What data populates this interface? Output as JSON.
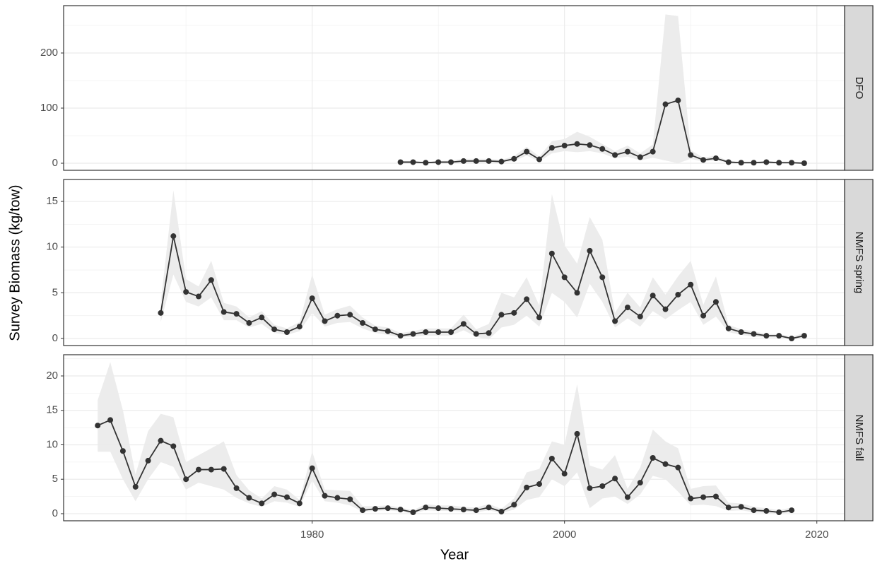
{
  "x_label": "Year",
  "y_label": "Survey Biomass (kg/tow)",
  "chart_data": [
    {
      "type": "line",
      "panel_label": "DFO",
      "x": [
        1987,
        1988,
        1989,
        1990,
        1991,
        1992,
        1993,
        1994,
        1995,
        1996,
        1997,
        1998,
        1999,
        2000,
        2001,
        2002,
        2003,
        2004,
        2005,
        2006,
        2007,
        2008,
        2009,
        2010,
        2011,
        2012,
        2013,
        2014,
        2015,
        2016,
        2017,
        2018,
        2019
      ],
      "values": [
        2,
        2,
        1,
        2,
        2,
        4,
        4,
        4,
        3,
        8,
        21,
        7,
        28,
        32,
        35,
        33,
        26,
        15,
        21,
        11,
        21,
        107,
        114,
        15,
        6,
        9,
        2,
        1,
        1,
        2,
        1,
        1,
        0
      ],
      "lower": [
        0,
        0,
        0,
        0,
        0,
        1,
        1,
        1,
        1,
        4,
        14,
        3,
        18,
        22,
        20,
        22,
        18,
        9,
        12,
        5,
        10,
        5,
        0,
        8,
        3,
        5,
        1,
        0,
        0,
        1,
        0,
        0,
        0
      ],
      "upper": [
        4,
        4,
        3,
        4,
        5,
        8,
        8,
        8,
        6,
        13,
        30,
        12,
        40,
        44,
        57,
        48,
        35,
        22,
        32,
        18,
        34,
        270,
        267,
        24,
        10,
        14,
        4,
        3,
        3,
        4,
        3,
        3,
        2
      ],
      "xlim": [
        1960.3,
        2022.2
      ],
      "xticks": [
        1980,
        2000,
        2020
      ],
      "ylim": [
        -12.8,
        285.9
      ],
      "yticks": [
        0,
        100,
        200
      ],
      "line_color": "#333333",
      "ribbon_color": "#ebebeb",
      "grid": true
    },
    {
      "type": "line",
      "panel_label": "NMFS spring",
      "x": [
        1968,
        1969,
        1970,
        1971,
        1972,
        1973,
        1974,
        1975,
        1976,
        1977,
        1978,
        1979,
        1980,
        1981,
        1982,
        1983,
        1984,
        1985,
        1986,
        1987,
        1988,
        1989,
        1990,
        1991,
        1992,
        1993,
        1994,
        1995,
        1996,
        1997,
        1998,
        1999,
        2000,
        2001,
        2002,
        2003,
        2004,
        2005,
        2006,
        2007,
        2008,
        2009,
        2010,
        2011,
        2012,
        2013,
        2014,
        2015,
        2016,
        2017,
        2018,
        2019
      ],
      "values": [
        2.8,
        11.2,
        5.1,
        4.6,
        6.4,
        2.9,
        2.7,
        1.7,
        2.3,
        1.0,
        0.7,
        1.3,
        4.4,
        1.9,
        2.5,
        2.6,
        1.7,
        1.0,
        0.8,
        0.3,
        0.5,
        0.7,
        0.7,
        0.7,
        1.6,
        0.5,
        0.6,
        2.6,
        2.8,
        4.3,
        2.3,
        9.3,
        6.7,
        5.0,
        9.6,
        6.7,
        1.9,
        3.4,
        2.4,
        4.7,
        3.2,
        4.8,
        5.9,
        2.5,
        4.0,
        1.1,
        0.7,
        0.5,
        0.3,
        0.3,
        0.0,
        0.3
      ],
      "lower": [
        1.8,
        7,
        4,
        3.5,
        4.5,
        2,
        2,
        1.2,
        1.6,
        0.6,
        0.4,
        0.8,
        2.8,
        1.3,
        1.7,
        1.8,
        1.1,
        0.6,
        0.4,
        0.1,
        0.2,
        0.3,
        0.3,
        0.3,
        0.9,
        0.2,
        -0.1,
        1.2,
        1.5,
        2.5,
        1.3,
        5,
        4,
        2.3,
        6,
        4,
        1.2,
        2.2,
        1.3,
        3,
        2.1,
        3.1,
        4,
        1.5,
        2.4,
        0.7,
        0.4,
        0.2,
        0.1,
        0.1,
        -0.1,
        0.1
      ],
      "upper": [
        4,
        16.2,
        6.5,
        5.7,
        8.5,
        3.9,
        3.5,
        2.3,
        3,
        1.5,
        1.1,
        1.8,
        7,
        2.6,
        3.2,
        3.6,
        2.3,
        1.4,
        1.2,
        0.6,
        0.8,
        1.1,
        1.1,
        1.1,
        2.6,
        1,
        1.6,
        5,
        4.5,
        6.7,
        3.6,
        15.8,
        10.2,
        8.2,
        13.3,
        10.8,
        2.8,
        5,
        3.4,
        6.7,
        4.8,
        6.8,
        8.5,
        3.7,
        6.8,
        1.5,
        1,
        0.8,
        0.5,
        0.5,
        0.2,
        0.6
      ],
      "xlim": [
        1960.3,
        2022.2
      ],
      "xticks": [
        1980,
        2000,
        2020
      ],
      "ylim": [
        -0.77,
        17.4
      ],
      "yticks": [
        0,
        5,
        10,
        15
      ],
      "line_color": "#333333",
      "ribbon_color": "#ebebeb",
      "grid": true
    },
    {
      "type": "line",
      "panel_label": "NMFS fall",
      "x": [
        1963,
        1964,
        1965,
        1966,
        1967,
        1968,
        1969,
        1970,
        1971,
        1972,
        1973,
        1974,
        1975,
        1976,
        1977,
        1978,
        1979,
        1980,
        1981,
        1982,
        1983,
        1984,
        1985,
        1986,
        1987,
        1988,
        1989,
        1990,
        1991,
        1992,
        1993,
        1994,
        1995,
        1996,
        1997,
        1998,
        1999,
        2000,
        2001,
        2002,
        2003,
        2004,
        2005,
        2006,
        2007,
        2008,
        2009,
        2010,
        2011,
        2012,
        2013,
        2014,
        2015,
        2016,
        2017,
        2018
      ],
      "values": [
        12.8,
        13.6,
        9.1,
        3.9,
        7.7,
        10.6,
        9.8,
        5.0,
        6.4,
        6.4,
        6.5,
        3.7,
        2.3,
        1.5,
        2.8,
        2.4,
        1.5,
        6.6,
        2.6,
        2.3,
        2.1,
        0.5,
        0.7,
        0.8,
        0.6,
        0.2,
        0.9,
        0.8,
        0.7,
        0.6,
        0.5,
        0.9,
        0.3,
        1.3,
        3.8,
        4.3,
        8.0,
        5.8,
        11.6,
        3.7,
        4.0,
        5.1,
        2.4,
        4.5,
        8.1,
        7.2,
        6.7,
        2.2,
        2.4,
        2.5,
        0.9,
        1.0,
        0.5,
        0.4,
        0.2,
        0.5
      ],
      "lower": [
        9,
        9,
        5,
        1.8,
        5,
        7.5,
        6.8,
        3.5,
        4.5,
        4,
        3.5,
        2.3,
        1.5,
        1,
        1.8,
        1.6,
        1,
        4.8,
        1.8,
        1.6,
        1.2,
        0.3,
        0.4,
        0.5,
        0.3,
        0,
        0.5,
        0.4,
        0.4,
        0.3,
        0.2,
        0.5,
        0.1,
        0.6,
        2,
        2.4,
        5,
        4,
        6,
        0.8,
        2.2,
        2.5,
        1.4,
        2.8,
        5.5,
        5,
        3.2,
        1.2,
        1.3,
        1.1,
        0.4,
        0.5,
        0.2,
        0.1,
        0,
        0.2
      ],
      "upper": [
        16.5,
        22,
        15,
        5.7,
        12,
        14.5,
        14,
        7.5,
        8.5,
        9.5,
        10.5,
        5.6,
        3.4,
        2.2,
        4,
        3.5,
        2,
        9,
        3.5,
        3.4,
        3.3,
        1.1,
        1.1,
        1.2,
        0.9,
        0.5,
        1.4,
        1.2,
        1.2,
        1,
        0.9,
        1.4,
        0.7,
        2.2,
        6,
        6.5,
        10.5,
        10,
        18.8,
        7,
        6.4,
        8.5,
        3.6,
        6.7,
        12.2,
        10.5,
        9.5,
        3.6,
        4,
        4.1,
        1.6,
        1.5,
        1,
        0.8,
        0.5,
        0.9
      ],
      "xlim": [
        1960.3,
        2022.2
      ],
      "xticks": [
        1980,
        2000,
        2020
      ],
      "ylim": [
        -1.03,
        23.08
      ],
      "yticks": [
        0,
        5,
        10,
        15,
        20
      ],
      "line_color": "#333333",
      "ribbon_color": "#ebebeb",
      "grid": true
    }
  ]
}
